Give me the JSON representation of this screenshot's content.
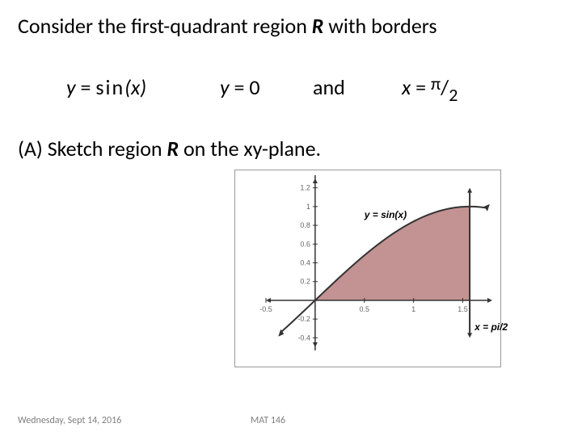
{
  "heading": {
    "pre": "Consider the first-quadrant region ",
    "bold": "R",
    "post": " with borders"
  },
  "equations": {
    "eq1_y": "y",
    "eq1_eq": " = ",
    "eq1_sin": "sin",
    "eq1_x": "(x)",
    "eq2_y": "y",
    "eq2_eq": " = ",
    "eq2_val": "0",
    "and": "and",
    "eq3_x": "x",
    "eq3_eq": " = ",
    "eq3_pi": "π",
    "eq3_slash": "/",
    "eq3_two": "2"
  },
  "part_a": {
    "pre": "(A) Sketch region ",
    "bold": "R",
    "post": " on the xy-plane."
  },
  "chart": {
    "type": "area-under-curve",
    "background_color": "#ffffff",
    "axes_color": "#333333",
    "curve_color": "#333333",
    "fill_color": "#bd8686",
    "fill_opacity": 0.9,
    "line_width": 2,
    "xlim": [
      -0.5,
      1.8
    ],
    "ylim": [
      -0.5,
      1.3
    ],
    "x_ticks": [
      -0.5,
      0.5,
      1,
      1.5
    ],
    "y_ticks": [
      -0.4,
      -0.2,
      0.2,
      0.4,
      0.6,
      0.8,
      1,
      1.2
    ],
    "tick_fontsize": 9,
    "tick_color": "#666666",
    "gridlines": false,
    "curve_label": "y = sin(x)",
    "curve_label_fontsize": 12,
    "curve_label_bold": true,
    "x_marker_label": "x = pi/2",
    "x_marker_label_fontsize": 12,
    "x_marker_label_bold": true,
    "vertical_line_x": 1.5708,
    "arrow_size": 6,
    "sin_points_x": [
      0,
      0.15,
      0.3,
      0.45,
      0.6,
      0.75,
      0.9,
      1.05,
      1.2,
      1.35,
      1.5,
      1.5708
    ],
    "sin_points_y": [
      0,
      0.1494,
      0.2955,
      0.435,
      0.5646,
      0.6816,
      0.7833,
      0.8674,
      0.932,
      0.9757,
      0.9975,
      1.0
    ]
  },
  "footer": {
    "left": "Wednesday, Sept 14, 2016",
    "center": "MAT 146"
  }
}
